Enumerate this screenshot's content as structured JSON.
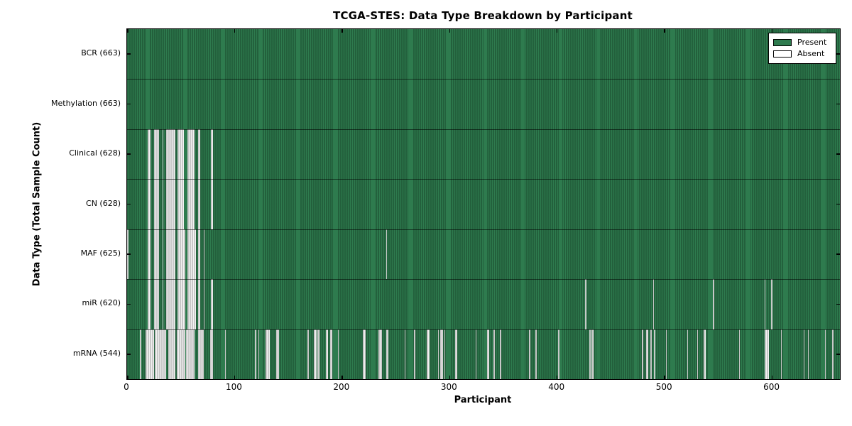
{
  "title": "TCGA-STES: Data Type Breakdown by Participant",
  "xlabel": "Participant",
  "ylabel": "Data Type (Total Sample Count)",
  "legend": {
    "present_label": "Present",
    "absent_label": "Absent"
  },
  "colors": {
    "present_fill": "#2e7b4e",
    "present_edge": "rgba(10,35,20,0.60)",
    "absent_fill": "#f2f2f2",
    "absent_edge": "rgba(130,130,130,0.75)",
    "axis": "#000000",
    "background": "#ffffff"
  },
  "chart_data": {
    "type": "heatmap",
    "title": "TCGA-STES: Data Type Breakdown by Participant",
    "xlabel": "Participant",
    "ylabel": "Data Type (Total Sample Count)",
    "x_ticks": [
      0,
      100,
      200,
      300,
      400,
      500,
      600
    ],
    "x_range": [
      0,
      663
    ],
    "total_participants": 663,
    "legend_entries": [
      "Present",
      "Absent"
    ],
    "legend_position": "upper right",
    "rows": [
      {
        "name": "BCR",
        "label": "BCR (663)",
        "present_count": 663,
        "absent_count": 0,
        "absent_ranges": []
      },
      {
        "name": "Methylation",
        "label": "Methylation (663)",
        "present_count": 663,
        "absent_count": 0,
        "absent_ranges": []
      },
      {
        "name": "Clinical",
        "label": "Clinical (628)",
        "present_count": 628,
        "absent_count": 35,
        "absent_ranges": [
          [
            19,
            21
          ],
          [
            25,
            29
          ],
          [
            33,
            33
          ],
          [
            36,
            44
          ],
          [
            47,
            52
          ],
          [
            56,
            62
          ],
          [
            66,
            67
          ],
          [
            78,
            79
          ]
        ]
      },
      {
        "name": "CN",
        "label": "CN (628)",
        "present_count": 628,
        "absent_count": 35,
        "absent_ranges": [
          [
            19,
            21
          ],
          [
            25,
            29
          ],
          [
            33,
            33
          ],
          [
            36,
            44
          ],
          [
            47,
            52
          ],
          [
            56,
            62
          ],
          [
            66,
            67
          ],
          [
            78,
            79
          ]
        ]
      },
      {
        "name": "MAF",
        "label": "MAF (625)",
        "present_count": 625,
        "absent_count": 38,
        "absent_ranges": [
          [
            0,
            0
          ],
          [
            19,
            21
          ],
          [
            25,
            29
          ],
          [
            33,
            33
          ],
          [
            36,
            44
          ],
          [
            47,
            53
          ],
          [
            56,
            63
          ],
          [
            66,
            67
          ],
          [
            71,
            71
          ],
          [
            241,
            241
          ]
        ]
      },
      {
        "name": "miR",
        "label": "miR (620)",
        "present_count": 620,
        "absent_count": 43,
        "absent_ranges": [
          [
            19,
            21
          ],
          [
            25,
            29
          ],
          [
            33,
            33
          ],
          [
            36,
            44
          ],
          [
            47,
            53
          ],
          [
            56,
            63
          ],
          [
            66,
            67
          ],
          [
            71,
            71
          ],
          [
            78,
            79
          ],
          [
            426,
            426
          ],
          [
            489,
            489
          ],
          [
            545,
            545
          ],
          [
            593,
            593
          ],
          [
            599,
            599
          ]
        ]
      },
      {
        "name": "mRNA",
        "label": "mRNA (544)",
        "present_count": 544,
        "absent_count": 119,
        "absent_ranges": [
          [
            12,
            12
          ],
          [
            17,
            24
          ],
          [
            26,
            35
          ],
          [
            38,
            44
          ],
          [
            46,
            53
          ],
          [
            55,
            62
          ],
          [
            66,
            70
          ],
          [
            77,
            79
          ],
          [
            91,
            91
          ],
          [
            119,
            119
          ],
          [
            122,
            122
          ],
          [
            129,
            132
          ],
          [
            139,
            140
          ],
          [
            168,
            168
          ],
          [
            174,
            175
          ],
          [
            177,
            178
          ],
          [
            185,
            186
          ],
          [
            189,
            190
          ],
          [
            196,
            196
          ],
          [
            219,
            221
          ],
          [
            234,
            236
          ],
          [
            241,
            242
          ],
          [
            258,
            258
          ],
          [
            267,
            267
          ],
          [
            279,
            280
          ],
          [
            289,
            289
          ],
          [
            291,
            293
          ],
          [
            295,
            295
          ],
          [
            305,
            306
          ],
          [
            324,
            324
          ],
          [
            335,
            336
          ],
          [
            341,
            341
          ],
          [
            347,
            347
          ],
          [
            374,
            374
          ],
          [
            380,
            380
          ],
          [
            401,
            401
          ],
          [
            430,
            430
          ],
          [
            432,
            433
          ],
          [
            479,
            479
          ],
          [
            483,
            484
          ],
          [
            487,
            487
          ],
          [
            490,
            490
          ],
          [
            501,
            501
          ],
          [
            521,
            521
          ],
          [
            530,
            530
          ],
          [
            536,
            537
          ],
          [
            569,
            569
          ],
          [
            593,
            596
          ],
          [
            608,
            608
          ],
          [
            629,
            629
          ],
          [
            633,
            633
          ],
          [
            649,
            649
          ],
          [
            656,
            656
          ]
        ]
      }
    ]
  }
}
